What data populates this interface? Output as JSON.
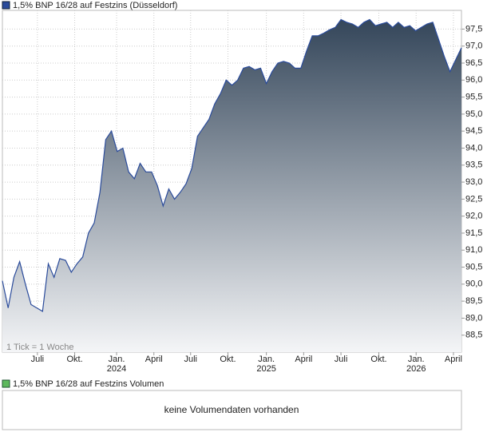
{
  "chart_data": [
    {
      "type": "area",
      "title": "1,5% BNP 16/28 auf Festzins (Düsseldorf)",
      "annotation": "1 Tick = 1 Woche",
      "color": "#2a4b9b",
      "values": [
        90.1,
        89.3,
        90.2,
        90.66,
        90.0,
        89.4,
        89.3,
        89.2,
        90.6,
        90.2,
        90.75,
        90.7,
        90.35,
        90.6,
        90.8,
        91.5,
        91.8,
        92.7,
        94.25,
        94.5,
        93.9,
        94.0,
        93.3,
        93.1,
        93.55,
        93.3,
        93.3,
        92.9,
        92.3,
        92.8,
        92.5,
        92.7,
        92.95,
        93.4,
        94.35,
        94.6,
        94.85,
        95.3,
        95.6,
        96.0,
        95.85,
        96.0,
        96.35,
        96.4,
        96.3,
        96.35,
        95.9,
        96.25,
        96.5,
        96.55,
        96.5,
        96.35,
        96.35,
        96.85,
        97.3,
        97.3,
        97.38,
        97.48,
        97.55,
        97.78,
        97.7,
        97.65,
        97.55,
        97.7,
        97.78,
        97.6,
        97.65,
        97.7,
        97.55,
        97.7,
        97.55,
        97.6,
        97.45,
        97.55,
        97.65,
        97.7,
        97.2,
        96.7,
        96.25,
        96.6,
        96.95
      ],
      "xlim": [
        0,
        80
      ],
      "xticks": [
        {
          "value": 6.1,
          "label": "Juli"
        },
        {
          "value": 12.6,
          "label": "Okt."
        },
        {
          "value": 19.9,
          "label": "Jan.",
          "year": "2024"
        },
        {
          "value": 26.4,
          "label": "April"
        },
        {
          "value": 32.8,
          "label": "Juli"
        },
        {
          "value": 39.3,
          "label": "Okt."
        },
        {
          "value": 46.0,
          "label": "Jan.",
          "year": "2025"
        },
        {
          "value": 52.5,
          "label": "April"
        },
        {
          "value": 59.0,
          "label": "Juli"
        },
        {
          "value": 65.6,
          "label": "Okt."
        },
        {
          "value": 72.1,
          "label": "Jan.",
          "year": "2026"
        },
        {
          "value": 78.6,
          "label": "April"
        }
      ],
      "ylim": [
        88.0,
        98.05
      ],
      "yticks": [
        {
          "value": 88.5,
          "label": "88,5"
        },
        {
          "value": 89.0,
          "label": "89,0"
        },
        {
          "value": 89.5,
          "label": "89,5"
        },
        {
          "value": 90.0,
          "label": "90,0"
        },
        {
          "value": 90.5,
          "label": "90,5"
        },
        {
          "value": 91.0,
          "label": "91,0"
        },
        {
          "value": 91.5,
          "label": "91,5"
        },
        {
          "value": 92.0,
          "label": "92,0"
        },
        {
          "value": 92.5,
          "label": "92,5"
        },
        {
          "value": 93.0,
          "label": "93,0"
        },
        {
          "value": 93.5,
          "label": "93,5"
        },
        {
          "value": 94.0,
          "label": "94,0"
        },
        {
          "value": 94.5,
          "label": "94,5"
        },
        {
          "value": 95.0,
          "label": "95,0"
        },
        {
          "value": 95.5,
          "label": "95,5"
        },
        {
          "value": 96.0,
          "label": "96,0"
        },
        {
          "value": 96.5,
          "label": "96,5"
        },
        {
          "value": 97.0,
          "label": "97,0"
        },
        {
          "value": 97.5,
          "label": "97,5"
        }
      ],
      "grid": true
    },
    {
      "type": "volume",
      "title": "1,5% BNP 16/28 auf Festzins Volumen",
      "color": "#5cb85c",
      "message": "keine Volumendaten vorhanden"
    }
  ]
}
